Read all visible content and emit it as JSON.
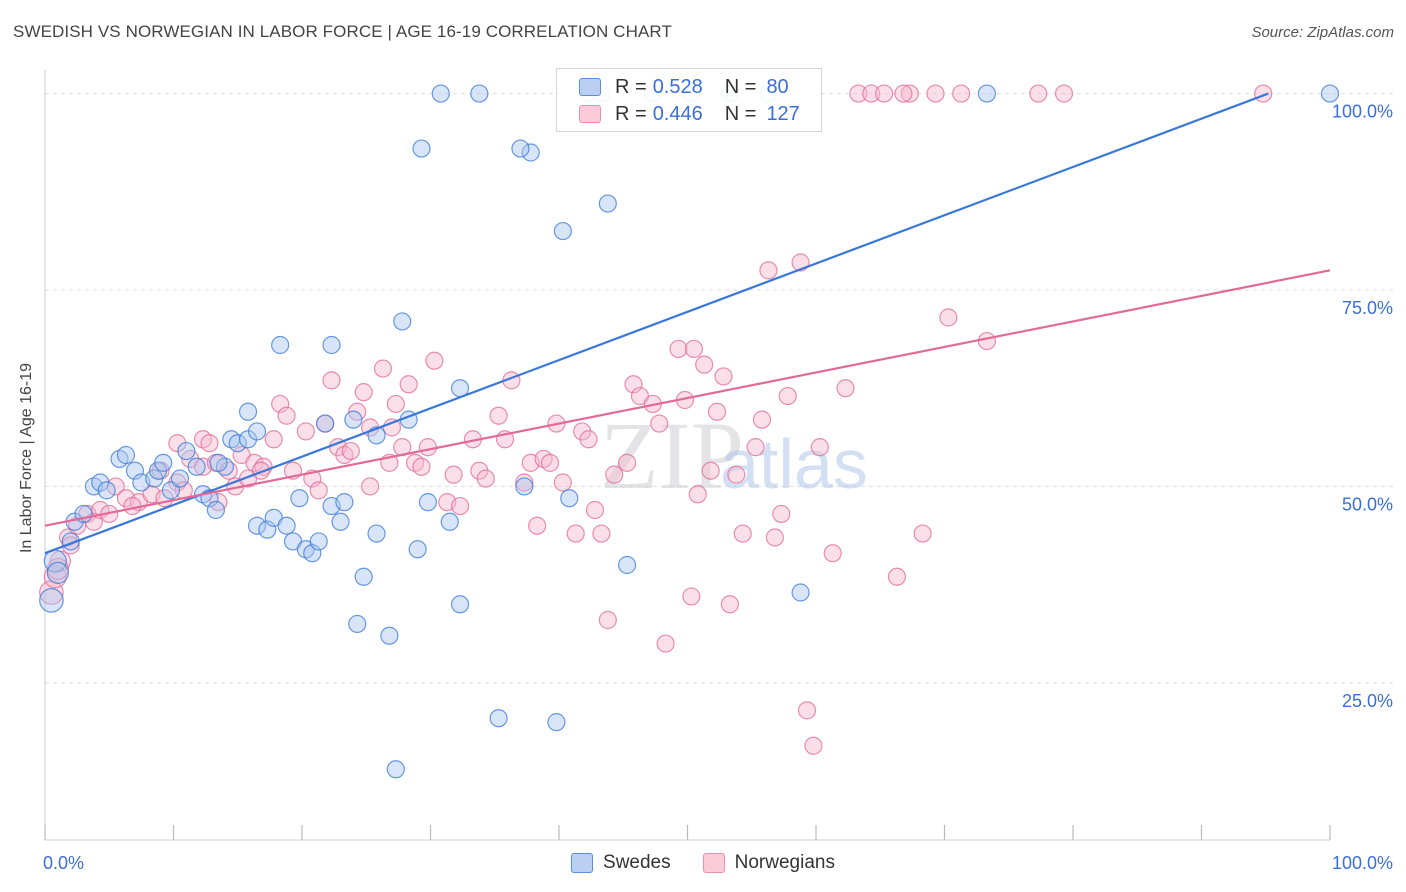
{
  "title": "SWEDISH VS NORWEGIAN IN LABOR FORCE | AGE 16-19 CORRELATION CHART",
  "source": "Source: ZipAtlas.com",
  "watermark": "ZIPatlas",
  "colors": {
    "blue": "#3a78d8",
    "pink": "#e26a98",
    "blue_fill": "#a9c6f0",
    "pink_fill": "#f6b9cd",
    "grid": "#dddddd",
    "tick_label": "#3a6fd8"
  },
  "legend_top": [
    {
      "r_label": "R =",
      "r_value": "0.528",
      "n_label": "N =",
      "n_value": "80"
    },
    {
      "r_label": "R =",
      "r_value": "0.446",
      "n_label": "N =",
      "n_value": "127"
    }
  ],
  "chart_data": {
    "type": "scatter",
    "title": "SWEDISH VS NORWEGIAN IN LABOR FORCE | AGE 16-19 CORRELATION CHART",
    "xlabel": "",
    "ylabel": "In Labor Force | Age 16-19",
    "xlim": [
      0,
      100
    ],
    "ylim": [
      5,
      103
    ],
    "x_tick_labels": [
      "0.0%",
      "100.0%"
    ],
    "y_tick_labels": [
      "25.0%",
      "50.0%",
      "75.0%",
      "100.0%"
    ],
    "y_ticks": [
      25,
      50,
      75,
      100
    ],
    "grid": "horizontal dashed",
    "legend_position": "top-center and bottom",
    "series": [
      {
        "name": "Swedes",
        "r": 0.528,
        "n": 80,
        "trend": {
          "x": [
            0,
            95.2
          ],
          "y": [
            41.5,
            100
          ]
        },
        "points": [
          [
            0.5,
            35.5
          ],
          [
            0.8,
            40.5
          ],
          [
            1.0,
            39.0
          ],
          [
            2.0,
            43.0
          ],
          [
            2.3,
            45.5
          ],
          [
            3.0,
            46.5
          ],
          [
            3.8,
            50.0
          ],
          [
            4.3,
            50.5
          ],
          [
            4.8,
            49.5
          ],
          [
            5.8,
            53.5
          ],
          [
            6.3,
            54.0
          ],
          [
            7.0,
            52.0
          ],
          [
            7.5,
            50.5
          ],
          [
            8.5,
            51.0
          ],
          [
            8.8,
            52.0
          ],
          [
            9.2,
            53.0
          ],
          [
            9.8,
            49.5
          ],
          [
            10.5,
            51.0
          ],
          [
            11.0,
            54.5
          ],
          [
            11.8,
            52.5
          ],
          [
            12.3,
            49.0
          ],
          [
            12.8,
            48.5
          ],
          [
            13.3,
            47.0
          ],
          [
            14.0,
            52.5
          ],
          [
            14.5,
            56.0
          ],
          [
            15.0,
            55.5
          ],
          [
            15.8,
            56.0
          ],
          [
            15.8,
            59.5
          ],
          [
            16.5,
            57.0
          ],
          [
            16.5,
            45.0
          ],
          [
            17.3,
            44.5
          ],
          [
            17.8,
            46.0
          ],
          [
            18.3,
            68.0
          ],
          [
            18.8,
            45.0
          ],
          [
            19.3,
            43.0
          ],
          [
            19.8,
            48.5
          ],
          [
            20.3,
            42.0
          ],
          [
            20.8,
            41.5
          ],
          [
            21.8,
            58.0
          ],
          [
            22.3,
            68.0
          ],
          [
            22.3,
            47.5
          ],
          [
            23.0,
            45.5
          ],
          [
            23.3,
            48.0
          ],
          [
            24.0,
            58.5
          ],
          [
            24.8,
            38.5
          ],
          [
            24.3,
            32.5
          ],
          [
            25.8,
            56.5
          ],
          [
            25.8,
            44.0
          ],
          [
            26.8,
            31.0
          ],
          [
            27.3,
            14.0
          ],
          [
            27.8,
            71.0
          ],
          [
            28.3,
            58.5
          ],
          [
            29.0,
            42.0
          ],
          [
            29.8,
            48.0
          ],
          [
            30.8,
            100.0
          ],
          [
            31.5,
            45.5
          ],
          [
            32.3,
            62.5
          ],
          [
            32.3,
            35.0
          ],
          [
            33.8,
            100.0
          ],
          [
            35.3,
            20.5
          ],
          [
            37.3,
            50.0
          ],
          [
            37.8,
            92.5
          ],
          [
            39.8,
            20.0
          ],
          [
            40.3,
            82.5
          ],
          [
            40.8,
            48.5
          ],
          [
            42.3,
            100.0
          ],
          [
            43.3,
            100.0
          ],
          [
            43.8,
            86.0
          ],
          [
            45.3,
            40.0
          ],
          [
            47.3,
            100.0
          ],
          [
            50.3,
            100.0
          ],
          [
            53.3,
            100.0
          ],
          [
            56.3,
            100.0
          ],
          [
            58.8,
            36.5
          ],
          [
            73.3,
            100.0
          ],
          [
            100.0,
            100.0
          ],
          [
            29.3,
            93.0
          ],
          [
            37.0,
            93.0
          ],
          [
            21.3,
            43.0
          ],
          [
            13.5,
            53.0
          ]
        ]
      },
      {
        "name": "Norwegians",
        "r": 0.446,
        "n": 127,
        "trend": {
          "x": [
            0,
            100
          ],
          "y": [
            45.0,
            77.5
          ]
        },
        "points": [
          [
            0.5,
            36.5
          ],
          [
            0.8,
            38.5
          ],
          [
            1.2,
            40.5
          ],
          [
            1.8,
            43.5
          ],
          [
            2.5,
            45.0
          ],
          [
            3.3,
            46.5
          ],
          [
            3.8,
            45.5
          ],
          [
            4.3,
            47.0
          ],
          [
            5.0,
            46.5
          ],
          [
            5.5,
            50.0
          ],
          [
            6.3,
            48.5
          ],
          [
            7.3,
            48.0
          ],
          [
            8.3,
            49.0
          ],
          [
            9.0,
            52.0
          ],
          [
            9.3,
            48.5
          ],
          [
            10.3,
            50.5
          ],
          [
            10.3,
            55.5
          ],
          [
            11.3,
            53.5
          ],
          [
            12.3,
            52.5
          ],
          [
            12.3,
            56.0
          ],
          [
            12.8,
            55.5
          ],
          [
            13.3,
            53.0
          ],
          [
            13.5,
            48.0
          ],
          [
            14.3,
            52.0
          ],
          [
            14.8,
            50.0
          ],
          [
            15.3,
            54.0
          ],
          [
            15.8,
            51.0
          ],
          [
            16.3,
            53.0
          ],
          [
            17.0,
            52.5
          ],
          [
            17.8,
            56.0
          ],
          [
            18.3,
            60.5
          ],
          [
            18.8,
            59.0
          ],
          [
            19.3,
            52.0
          ],
          [
            20.3,
            57.0
          ],
          [
            20.8,
            51.0
          ],
          [
            21.3,
            49.5
          ],
          [
            21.8,
            58.0
          ],
          [
            22.3,
            63.5
          ],
          [
            22.8,
            55.0
          ],
          [
            23.3,
            54.0
          ],
          [
            23.8,
            54.5
          ],
          [
            24.3,
            59.5
          ],
          [
            25.3,
            57.5
          ],
          [
            25.3,
            50.0
          ],
          [
            26.3,
            65.0
          ],
          [
            26.8,
            53.0
          ],
          [
            27.3,
            60.5
          ],
          [
            27.8,
            55.0
          ],
          [
            28.3,
            63.0
          ],
          [
            28.8,
            53.0
          ],
          [
            29.3,
            52.5
          ],
          [
            29.8,
            55.0
          ],
          [
            30.3,
            66.0
          ],
          [
            31.3,
            48.0
          ],
          [
            31.8,
            51.5
          ],
          [
            32.3,
            47.5
          ],
          [
            33.3,
            56.0
          ],
          [
            33.8,
            52.0
          ],
          [
            34.3,
            51.0
          ],
          [
            35.3,
            59.0
          ],
          [
            35.8,
            56.0
          ],
          [
            36.3,
            63.5
          ],
          [
            37.3,
            50.5
          ],
          [
            37.8,
            53.0
          ],
          [
            38.3,
            45.0
          ],
          [
            38.8,
            53.5
          ],
          [
            39.3,
            53.0
          ],
          [
            39.8,
            58.0
          ],
          [
            40.3,
            50.5
          ],
          [
            41.3,
            44.0
          ],
          [
            41.8,
            57.0
          ],
          [
            42.3,
            56.0
          ],
          [
            42.8,
            47.0
          ],
          [
            43.3,
            44.0
          ],
          [
            43.8,
            33.0
          ],
          [
            44.3,
            51.5
          ],
          [
            45.3,
            53.0
          ],
          [
            45.8,
            63.0
          ],
          [
            46.3,
            61.5
          ],
          [
            47.3,
            60.5
          ],
          [
            47.8,
            58.0
          ],
          [
            48.3,
            30.0
          ],
          [
            49.3,
            67.5
          ],
          [
            49.8,
            61.0
          ],
          [
            50.3,
            36.0
          ],
          [
            50.8,
            49.0
          ],
          [
            51.3,
            65.5
          ],
          [
            51.8,
            52.0
          ],
          [
            52.3,
            59.5
          ],
          [
            53.3,
            35.0
          ],
          [
            53.8,
            51.5
          ],
          [
            54.3,
            44.0
          ],
          [
            55.3,
            55.0
          ],
          [
            55.8,
            58.5
          ],
          [
            56.3,
            77.5
          ],
          [
            56.8,
            43.5
          ],
          [
            57.3,
            46.5
          ],
          [
            57.8,
            61.5
          ],
          [
            58.8,
            78.5
          ],
          [
            59.3,
            21.5
          ],
          [
            59.8,
            17.0
          ],
          [
            60.3,
            55.0
          ],
          [
            61.3,
            41.5
          ],
          [
            62.3,
            62.5
          ],
          [
            63.3,
            100.0
          ],
          [
            64.3,
            100.0
          ],
          [
            65.3,
            100.0
          ],
          [
            66.3,
            38.5
          ],
          [
            67.3,
            100.0
          ],
          [
            68.3,
            44.0
          ],
          [
            69.3,
            100.0
          ],
          [
            70.3,
            71.5
          ],
          [
            71.3,
            100.0
          ],
          [
            73.3,
            68.5
          ],
          [
            77.3,
            100.0
          ],
          [
            79.3,
            100.0
          ],
          [
            94.8,
            100.0
          ],
          [
            66.8,
            100.0
          ],
          [
            1.0,
            39.5
          ],
          [
            2.0,
            42.5
          ],
          [
            6.8,
            47.5
          ],
          [
            10.8,
            49.5
          ],
          [
            16.8,
            52.0
          ],
          [
            24.8,
            62.0
          ],
          [
            27.0,
            57.5
          ],
          [
            50.5,
            67.5
          ],
          [
            52.8,
            64.0
          ]
        ]
      }
    ]
  },
  "bottom_legend": [
    {
      "label": "Swedes"
    },
    {
      "label": "Norwegians"
    }
  ]
}
